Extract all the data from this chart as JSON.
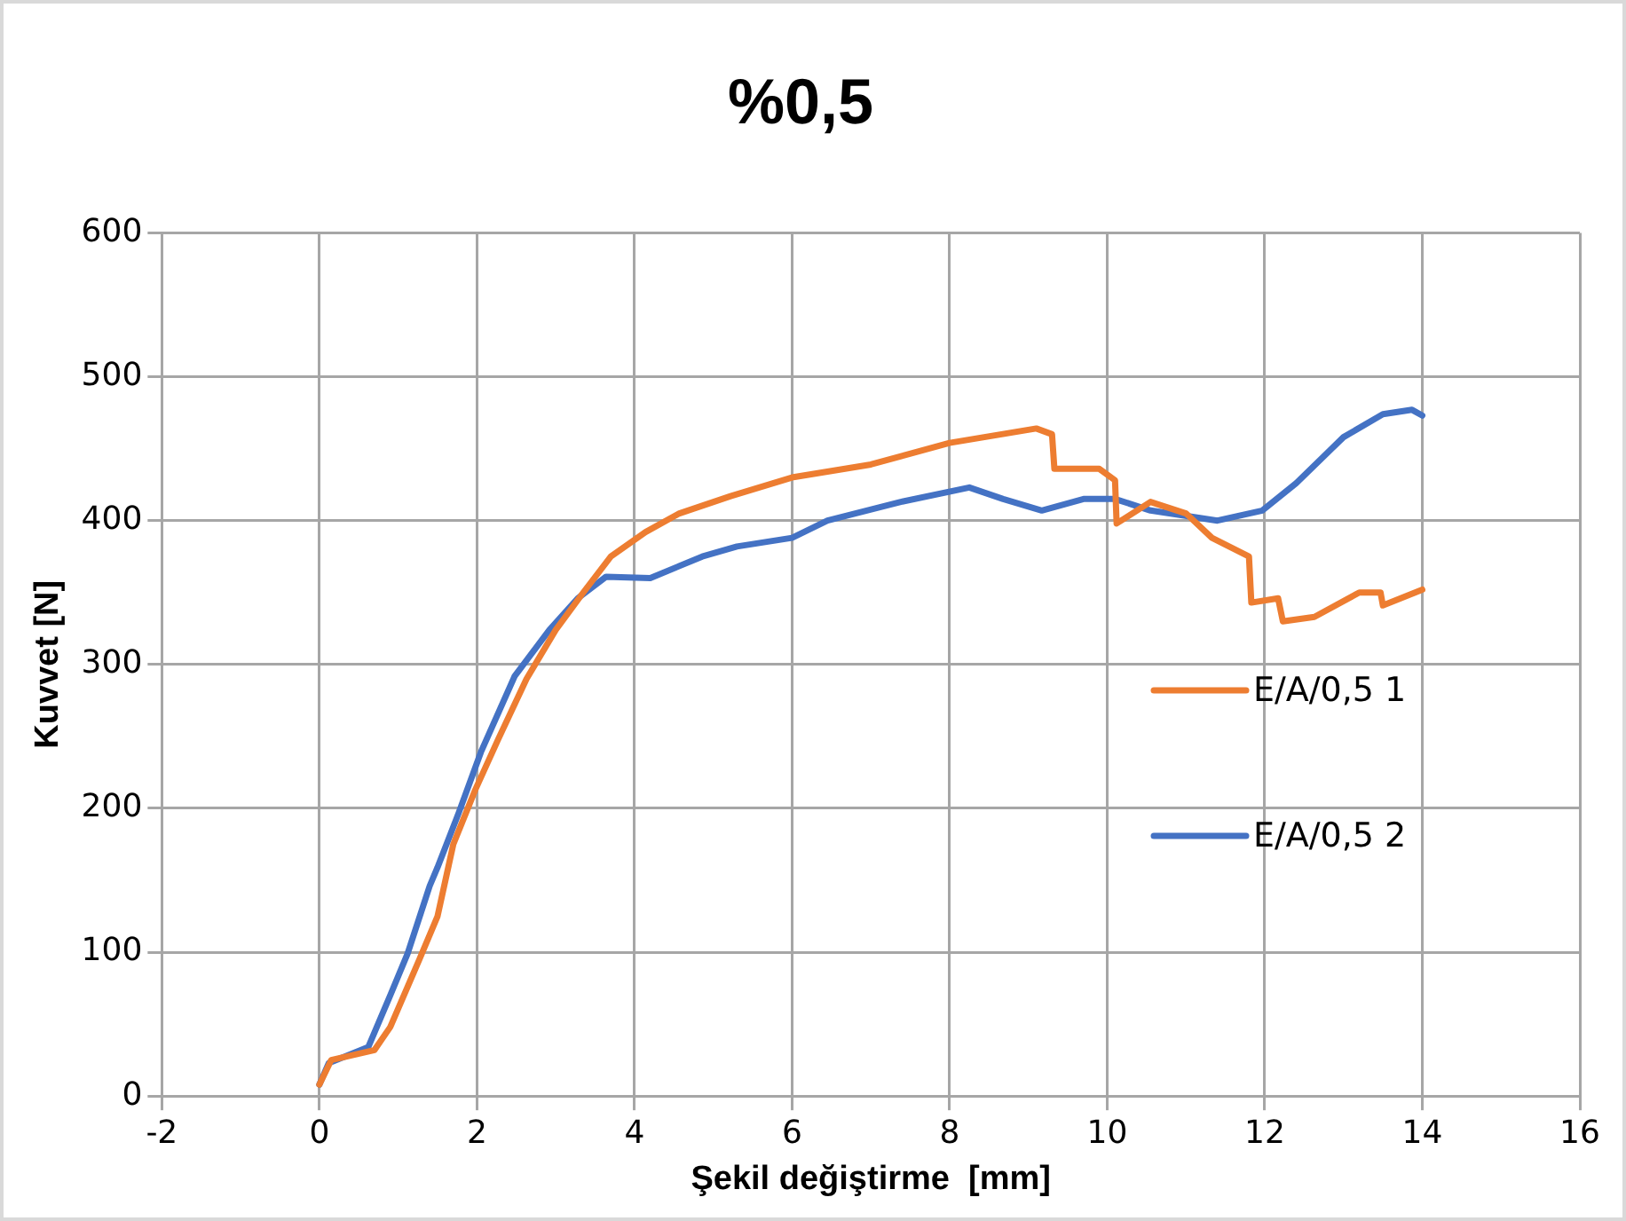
{
  "chart_data": {
    "type": "line",
    "title": "%0,5",
    "xlabel": "Şekil değiştirme  [mm]",
    "ylabel": "Kuvvet [N]",
    "xlim": [
      -2,
      16
    ],
    "xticks": [
      -2,
      0,
      2,
      4,
      6,
      8,
      10,
      12,
      14,
      16
    ],
    "ylim": [
      0,
      600
    ],
    "yticks": [
      0,
      100,
      200,
      300,
      400,
      500,
      600
    ],
    "grid": true,
    "legend": "right",
    "marker": "none",
    "line_style": "solid",
    "series": [
      {
        "name": "E/A/0,5 1",
        "color": "#ed7d31",
        "x": [
          0,
          0.15,
          0.7,
          0.9,
          1.27,
          1.5,
          1.7,
          1.98,
          2.27,
          2.63,
          3.0,
          3.35,
          3.7,
          4.14,
          4.57,
          5.22,
          6.0,
          7.0,
          8.0,
          9.1,
          9.3,
          9.33,
          9.9,
          10.1,
          10.12,
          10.55,
          11.0,
          11.33,
          11.8,
          11.83,
          12.17,
          12.23,
          12.63,
          13.2,
          13.47,
          13.5,
          14.0
        ],
        "values": [
          8,
          25,
          32,
          48,
          95,
          125,
          175,
          213,
          248,
          290,
          324,
          350,
          375,
          392,
          405,
          417,
          430,
          439,
          454,
          464,
          460,
          436,
          436,
          428,
          398,
          413,
          405,
          388,
          375,
          343,
          346,
          330,
          333,
          350,
          350,
          341,
          352
        ]
      },
      {
        "name": "E/A/0,5 2",
        "color": "#4472c4",
        "x": [
          0,
          0.12,
          0.62,
          0.9,
          1.12,
          1.4,
          1.5,
          1.77,
          2.05,
          2.48,
          2.92,
          3.28,
          3.64,
          4.2,
          4.86,
          5.3,
          6.0,
          6.45,
          7.38,
          8.25,
          8.68,
          9.17,
          9.7,
          10.1,
          10.55,
          11.4,
          11.97,
          12.4,
          13.0,
          13.5,
          13.87,
          14.0
        ],
        "values": [
          8,
          23,
          34,
          70,
          99,
          146,
          159,
          197,
          239,
          292,
          324,
          346,
          361,
          360,
          375,
          382,
          388,
          400,
          413,
          423,
          415,
          407,
          415,
          415,
          407,
          400,
          407,
          426,
          458,
          474,
          477,
          473
        ]
      }
    ]
  }
}
